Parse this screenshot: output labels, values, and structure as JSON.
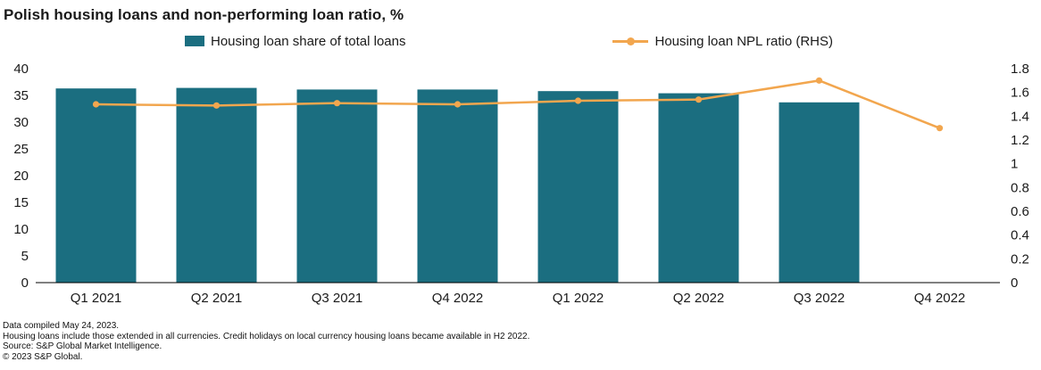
{
  "title": "Polish housing loans and non-performing loan ratio, %",
  "legend": {
    "bars_label": "Housing loan share of total loans",
    "line_label": "Housing loan NPL ratio (RHS)"
  },
  "chart_data": {
    "type": "bar",
    "subtype": "bar+line-dual-axis",
    "categories": [
      "Q1 2021",
      "Q2 2021",
      "Q3 2021",
      "Q4 2022",
      "Q1 2022",
      "Q2 2022",
      "Q3 2022",
      "Q4 2022"
    ],
    "series": [
      {
        "name": "Housing loan share of total loans",
        "type": "bar",
        "axis": "left",
        "values": [
          36.3,
          36.4,
          36.1,
          36.1,
          35.8,
          35.4,
          33.7,
          null
        ]
      },
      {
        "name": "Housing loan NPL ratio (RHS)",
        "type": "line",
        "axis": "right",
        "values": [
          1.5,
          1.49,
          1.51,
          1.5,
          1.53,
          1.54,
          1.7,
          1.3
        ]
      }
    ],
    "left_axis": {
      "min": 0,
      "max": 40,
      "ticks": [
        40,
        35,
        30,
        25,
        20,
        15,
        10,
        5,
        0
      ]
    },
    "right_axis": {
      "min": 0,
      "max": 1.8,
      "ticks": [
        "1.8",
        "1.6",
        "1.4",
        "1.2",
        "1",
        "0.8",
        "0.6",
        "0.4",
        "0.2",
        "0"
      ]
    },
    "grid": false,
    "legend_position": "top",
    "colors": {
      "bar": "#1b6e80",
      "line": "#f2a64e",
      "axis_text": "#1a1a1a",
      "axis_line": "#000000"
    }
  },
  "footnotes": [
    "Data compiled May 24, 2023.",
    "Housing loans include those extended in all currencies. Credit holidays on local currency housing loans became available in H2 2022.",
    "Source: S&P Global Market Intelligence.",
    "© 2023 S&P Global."
  ]
}
